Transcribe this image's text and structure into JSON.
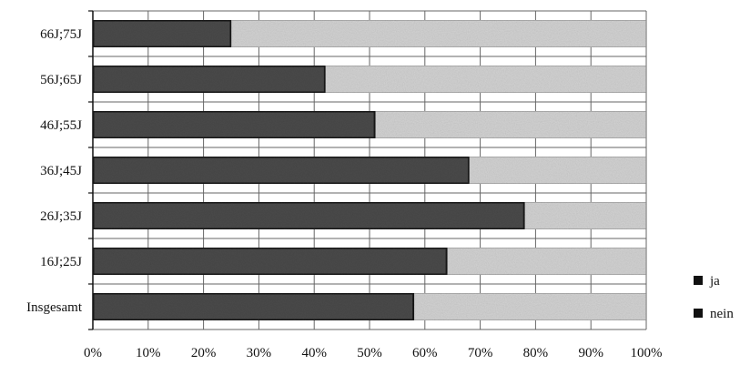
{
  "chart_data": {
    "type": "bar",
    "orientation": "horizontal",
    "stacked": true,
    "percent": true,
    "categories": [
      "66J;75J",
      "56J;65J",
      "46J;55J",
      "36J;45J",
      "26J;35J",
      "16J;25J",
      "Insgesamt"
    ],
    "series": [
      {
        "name": "ja",
        "values": [
          25,
          42,
          51,
          68,
          78,
          64,
          58
        ]
      },
      {
        "name": "nein",
        "values": [
          75,
          58,
          49,
          32,
          22,
          36,
          42
        ]
      }
    ],
    "xticks": [
      "0%",
      "10%",
      "20%",
      "30%",
      "40%",
      "50%",
      "60%",
      "70%",
      "80%",
      "90%",
      "100%"
    ],
    "xlim": [
      0,
      100
    ],
    "title": "",
    "xlabel": "",
    "ylabel": "",
    "grid": true,
    "legend_position": "right",
    "colors": {
      "ja": "#4a4a4a",
      "nein": "#d2d2d2",
      "grid": "#666666",
      "bar_border": "#1a1a1a"
    }
  }
}
